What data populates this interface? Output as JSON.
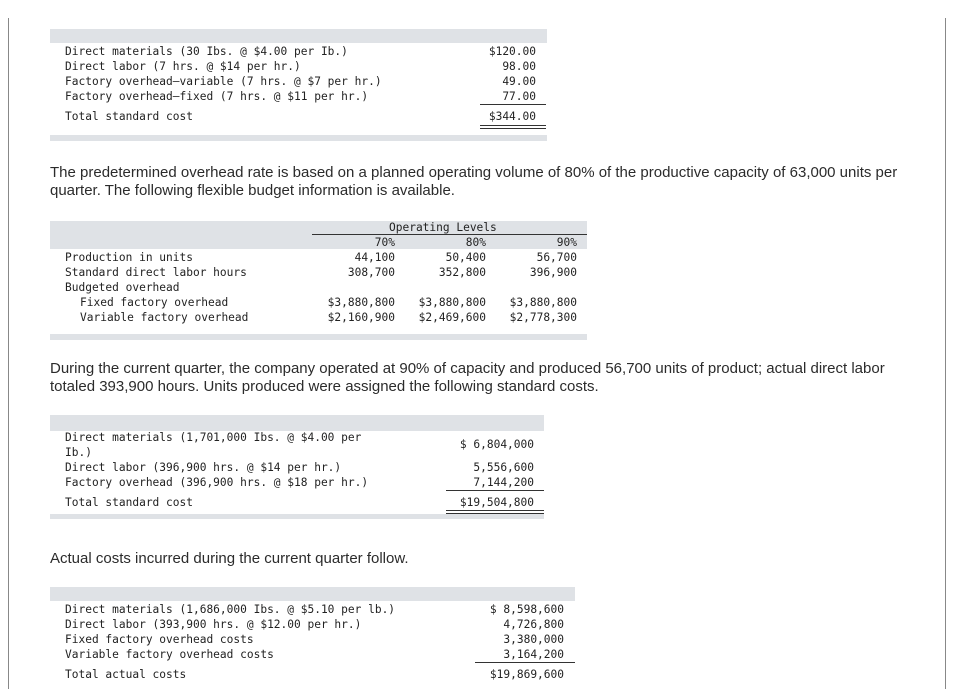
{
  "table1": {
    "rows": [
      {
        "label": "Direct materials (30 Ibs. @ $4.00 per Ib.)",
        "value": "$120.00"
      },
      {
        "label": "Direct labor (7 hrs. @ $14 per hr.)",
        "value": "98.00"
      },
      {
        "label": "Factory overhead—variable (7 hrs. @ $7 per hr.)",
        "value": "49.00"
      },
      {
        "label": "Factory overhead—fixed (7 hrs. @ $11 per hr.)",
        "value": "77.00"
      }
    ],
    "total_label": "Total standard cost",
    "total_value": "$344.00"
  },
  "para1": "The predetermined overhead rate is based on a planned operating volume of 80% of the productive capacity of 63,000 units per quarter. The following flexible budget information is available.",
  "table2": {
    "header": "Operating Levels",
    "levels": [
      "70%",
      "80%",
      "90%"
    ],
    "rows": [
      {
        "label": "Production in units",
        "values": [
          "44,100",
          "50,400",
          "56,700"
        ]
      },
      {
        "label": "Standard direct labor hours",
        "values": [
          "308,700",
          "352,800",
          "396,900"
        ]
      },
      {
        "label": "Budgeted overhead",
        "values": [
          "",
          "",
          ""
        ]
      },
      {
        "label": "Fixed factory overhead",
        "values": [
          "$3,880,800",
          "$3,880,800",
          "$3,880,800"
        ]
      },
      {
        "label": "Variable factory overhead",
        "values": [
          "$2,160,900",
          "$2,469,600",
          "$2,778,300"
        ]
      }
    ]
  },
  "para2": "During the current quarter, the company operated at 90% of capacity and produced 56,700 units of product; actual direct labor totaled 393,900 hours. Units produced were assigned the following standard costs.",
  "table3": {
    "row1_label_a": "Direct materials (1,701,000 Ibs. @ $4.00 per",
    "row1_label_b": "Ib.)",
    "row1_value": "$ 6,804,000",
    "row2_label": "Direct labor (396,900 hrs. @ $14 per hr.)",
    "row2_value": "5,556,600",
    "row3_label": "Factory overhead (396,900 hrs. @ $18 per hr.)",
    "row3_value": "7,144,200",
    "total_label": "Total standard cost",
    "total_value": "$19,504,800"
  },
  "para3": "Actual costs incurred during the current quarter follow.",
  "table4": {
    "rows": [
      {
        "label": "Direct materials (1,686,000 Ibs. @ $5.10 per lb.)",
        "value": "$ 8,598,600"
      },
      {
        "label": "Direct labor (393,900 hrs. @ $12.00 per hr.)",
        "value": "4,726,800"
      },
      {
        "label": "Fixed factory overhead costs",
        "value": "3,380,000"
      },
      {
        "label": "Variable factory overhead costs",
        "value": "3,164,200"
      }
    ],
    "total_label": "Total actual costs",
    "total_value": "$19,869,600"
  }
}
